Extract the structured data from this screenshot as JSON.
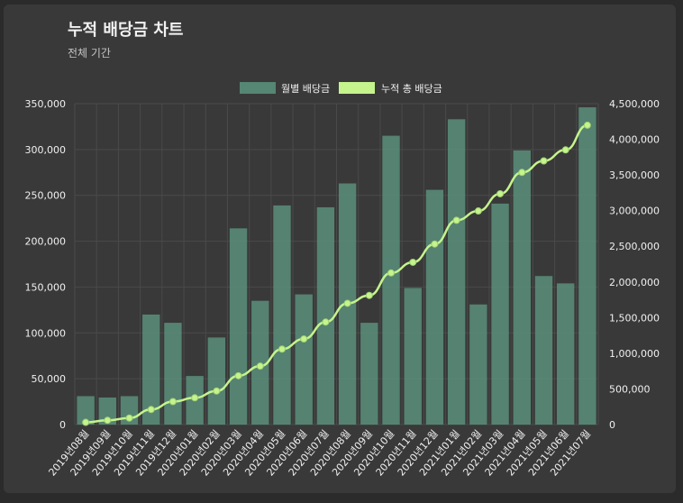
{
  "header": {
    "title": "누적 배당금 차트",
    "subtitle": "전체 기간"
  },
  "colors": {
    "bar": "#5a8f7b",
    "line": "#c5f48c",
    "grid": "#4a4a4a"
  },
  "chart_data": {
    "type": "bar",
    "categories": [
      "2019년08월",
      "2019년09월",
      "2019년10월",
      "2019년11월",
      "2019년12월",
      "2020년01월",
      "2020년02월",
      "2020년03월",
      "2020년04월",
      "2020년05월",
      "2020년06월",
      "2020년07월",
      "2020년08월",
      "2020년09월",
      "2020년10월",
      "2020년11월",
      "2020년12월",
      "2021년01월",
      "2021년02월",
      "2021년03월",
      "2021년04월",
      "2021년05월",
      "2021년06월",
      "2021년07월"
    ],
    "series": [
      {
        "name": "월별 배당금",
        "type": "bar",
        "axis": "left",
        "values": [
          31000,
          29500,
          31000,
          120000,
          111000,
          53000,
          95000,
          214000,
          135000,
          239000,
          142000,
          237000,
          263000,
          111000,
          315000,
          149000,
          256000,
          333000,
          131000,
          241000,
          299000,
          162000,
          154000,
          346000
        ]
      },
      {
        "name": "누적 총 배당금",
        "type": "line",
        "axis": "right",
        "values": [
          31000,
          60500,
          91500,
          211500,
          322500,
          375500,
          470500,
          684500,
          819500,
          1058500,
          1200500,
          1437500,
          1700500,
          1811500,
          2126500,
          2275500,
          2531500,
          2864500,
          2995500,
          3236500,
          3535500,
          3697500,
          3851500,
          4197500
        ]
      }
    ],
    "y_left": {
      "range": [
        0,
        350000
      ],
      "ticks": [
        "0",
        "50,000",
        "100,000",
        "150,000",
        "200,000",
        "250,000",
        "300,000",
        "350,000"
      ]
    },
    "y_right": {
      "range": [
        0,
        4500000
      ],
      "ticks": [
        "0",
        "500,000",
        "1,000,000",
        "1,500,000",
        "2,000,000",
        "2,500,000",
        "3,000,000",
        "3,500,000",
        "4,000,000",
        "4,500,000"
      ]
    },
    "legend": "top-center",
    "grid": true
  }
}
